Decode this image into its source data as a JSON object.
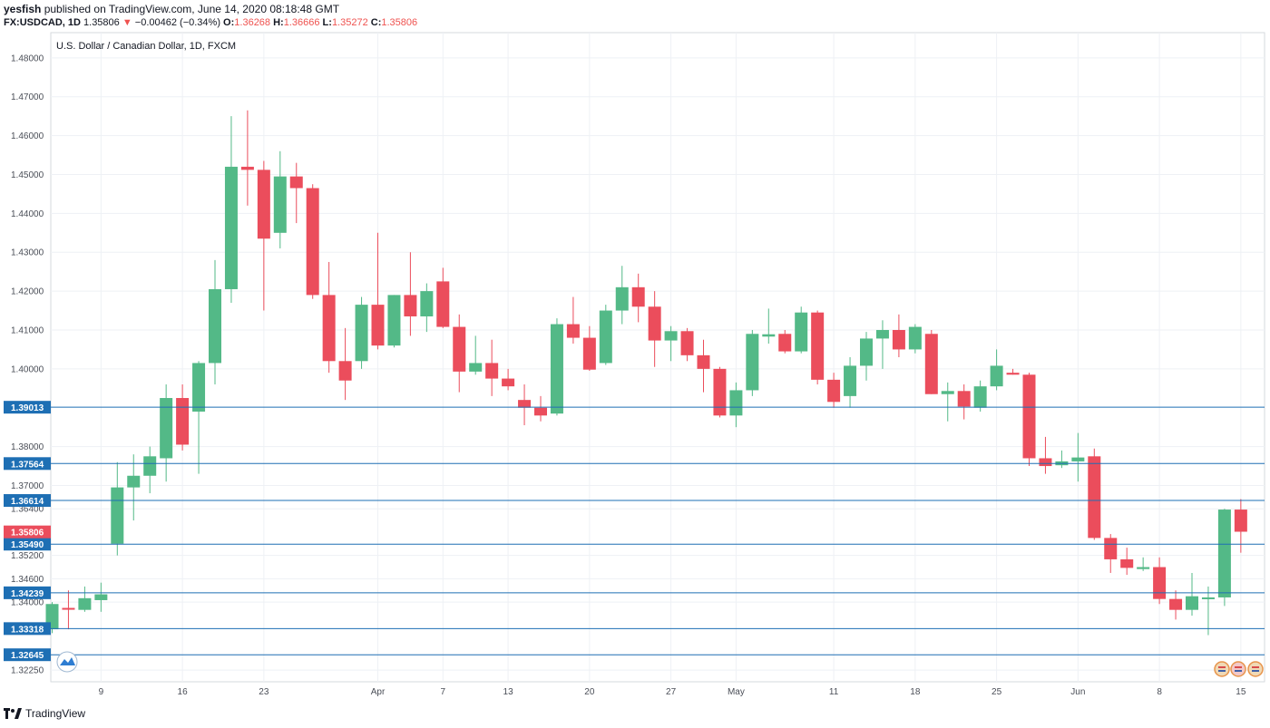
{
  "header": {
    "publisher": "yesfish",
    "published_text": "published on TradingView.com, June 14, 2020 08:18:48 GMT"
  },
  "ticker": {
    "symbol": "FX:USDCAD, 1D",
    "last": "1.35806",
    "change": "−0.00462 (−0.34%)",
    "open_label": "O:",
    "open": "1.36268",
    "high_label": "H:",
    "high": "1.36666",
    "low_label": "L:",
    "low": "1.35272",
    "close_label": "C:",
    "close": "1.35806"
  },
  "footer": {
    "brand": "TradingView"
  },
  "colors": {
    "up": "#53b987",
    "down": "#eb4d5c",
    "hline": "#1e6fb4",
    "grid": "#eef1f5",
    "axis_text": "#4a4e57",
    "label_bg_blue": "#1e6fb4",
    "label_bg_red": "#eb4d5c"
  },
  "chart_data": {
    "type": "candlestick",
    "title": "U.S. Dollar / Canadian Dollar, 1D, FXCM",
    "ylim": [
      1.3195,
      1.4865
    ],
    "y_ticks": [
      "1.48000",
      "1.47000",
      "1.46000",
      "1.45000",
      "1.44000",
      "1.43000",
      "1.42000",
      "1.41000",
      "1.40000",
      "1.38000",
      "1.37000",
      "1.36400",
      "1.35200",
      "1.34600",
      "1.34000",
      "1.32250"
    ],
    "x_ticks": [
      {
        "label": "9",
        "i": 3
      },
      {
        "label": "16",
        "i": 8
      },
      {
        "label": "23",
        "i": 13
      },
      {
        "label": "Apr",
        "i": 20
      },
      {
        "label": "7",
        "i": 24
      },
      {
        "label": "13",
        "i": 28
      },
      {
        "label": "20",
        "i": 33
      },
      {
        "label": "27",
        "i": 38
      },
      {
        "label": "May",
        "i": 42
      },
      {
        "label": "11",
        "i": 48
      },
      {
        "label": "18",
        "i": 53
      },
      {
        "label": "25",
        "i": 58
      },
      {
        "label": "Jun",
        "i": 63
      },
      {
        "label": "8",
        "i": 68
      },
      {
        "label": "15",
        "i": 73
      }
    ],
    "horizontal_lines": [
      1.39013,
      1.37564,
      1.36614,
      1.3549,
      1.34239,
      1.33318,
      1.32645
    ],
    "horizontal_line_labels": [
      "1.39013",
      "1.37564",
      "1.36614",
      "1.35490",
      "1.34239",
      "1.33318",
      "1.32645"
    ],
    "last_price": 1.35806,
    "last_price_label": "1.35806",
    "candles": [
      {
        "o": 1.333,
        "h": 1.34,
        "l": 1.332,
        "c": 1.3395
      },
      {
        "o": 1.3385,
        "h": 1.343,
        "l": 1.333,
        "c": 1.3383
      },
      {
        "o": 1.338,
        "h": 1.344,
        "l": 1.3375,
        "c": 1.341
      },
      {
        "o": 1.3405,
        "h": 1.345,
        "l": 1.3375,
        "c": 1.342
      },
      {
        "o": 1.355,
        "h": 1.376,
        "l": 1.352,
        "c": 1.3695
      },
      {
        "o": 1.3695,
        "h": 1.378,
        "l": 1.361,
        "c": 1.3725
      },
      {
        "o": 1.3725,
        "h": 1.38,
        "l": 1.368,
        "c": 1.3775
      },
      {
        "o": 1.377,
        "h": 1.396,
        "l": 1.371,
        "c": 1.3925
      },
      {
        "o": 1.3925,
        "h": 1.396,
        "l": 1.379,
        "c": 1.3805
      },
      {
        "o": 1.389,
        "h": 1.402,
        "l": 1.373,
        "c": 1.4015
      },
      {
        "o": 1.4015,
        "h": 1.428,
        "l": 1.396,
        "c": 1.4205
      },
      {
        "o": 1.4205,
        "h": 1.465,
        "l": 1.417,
        "c": 1.452
      },
      {
        "o": 1.452,
        "h": 1.4665,
        "l": 1.442,
        "c": 1.4512
      },
      {
        "o": 1.4512,
        "h": 1.4535,
        "l": 1.415,
        "c": 1.4335
      },
      {
        "o": 1.435,
        "h": 1.456,
        "l": 1.431,
        "c": 1.4495
      },
      {
        "o": 1.4495,
        "h": 1.453,
        "l": 1.4375,
        "c": 1.4465
      },
      {
        "o": 1.4465,
        "h": 1.4475,
        "l": 1.418,
        "c": 1.419
      },
      {
        "o": 1.419,
        "h": 1.4275,
        "l": 1.399,
        "c": 1.402
      },
      {
        "o": 1.402,
        "h": 1.4105,
        "l": 1.392,
        "c": 1.397
      },
      {
        "o": 1.402,
        "h": 1.4185,
        "l": 1.4,
        "c": 1.4165
      },
      {
        "o": 1.4165,
        "h": 1.435,
        "l": 1.405,
        "c": 1.406
      },
      {
        "o": 1.406,
        "h": 1.419,
        "l": 1.4055,
        "c": 1.419
      },
      {
        "o": 1.419,
        "h": 1.43,
        "l": 1.4085,
        "c": 1.4135
      },
      {
        "o": 1.4135,
        "h": 1.422,
        "l": 1.4095,
        "c": 1.42
      },
      {
        "o": 1.4225,
        "h": 1.426,
        "l": 1.4105,
        "c": 1.4108
      },
      {
        "o": 1.4108,
        "h": 1.414,
        "l": 1.394,
        "c": 1.3993
      },
      {
        "o": 1.3993,
        "h": 1.4085,
        "l": 1.3985,
        "c": 1.4015
      },
      {
        "o": 1.4015,
        "h": 1.4075,
        "l": 1.393,
        "c": 1.3975
      },
      {
        "o": 1.3975,
        "h": 1.4,
        "l": 1.3945,
        "c": 1.3955
      },
      {
        "o": 1.392,
        "h": 1.396,
        "l": 1.3855,
        "c": 1.39
      },
      {
        "o": 1.39,
        "h": 1.393,
        "l": 1.3865,
        "c": 1.388
      },
      {
        "o": 1.3885,
        "h": 1.413,
        "l": 1.388,
        "c": 1.4115
      },
      {
        "o": 1.4115,
        "h": 1.4185,
        "l": 1.4065,
        "c": 1.408
      },
      {
        "o": 1.408,
        "h": 1.411,
        "l": 1.3995,
        "c": 1.3998
      },
      {
        "o": 1.4015,
        "h": 1.4165,
        "l": 1.401,
        "c": 1.415
      },
      {
        "o": 1.415,
        "h": 1.4265,
        "l": 1.4115,
        "c": 1.421
      },
      {
        "o": 1.421,
        "h": 1.4245,
        "l": 1.412,
        "c": 1.416
      },
      {
        "o": 1.416,
        "h": 1.42,
        "l": 1.4005,
        "c": 1.4073
      },
      {
        "o": 1.4073,
        "h": 1.411,
        "l": 1.402,
        "c": 1.4097
      },
      {
        "o": 1.4097,
        "h": 1.4105,
        "l": 1.402,
        "c": 1.4035
      },
      {
        "o": 1.4035,
        "h": 1.4075,
        "l": 1.394,
        "c": 1.4
      },
      {
        "o": 1.4,
        "h": 1.4005,
        "l": 1.3875,
        "c": 1.388
      },
      {
        "o": 1.388,
        "h": 1.3965,
        "l": 1.385,
        "c": 1.3945
      },
      {
        "o": 1.3945,
        "h": 1.41,
        "l": 1.393,
        "c": 1.409
      },
      {
        "o": 1.4083,
        "h": 1.4155,
        "l": 1.4065,
        "c": 1.4089
      },
      {
        "o": 1.409,
        "h": 1.41,
        "l": 1.404,
        "c": 1.4045
      },
      {
        "o": 1.4045,
        "h": 1.416,
        "l": 1.404,
        "c": 1.4145
      },
      {
        "o": 1.4145,
        "h": 1.415,
        "l": 1.396,
        "c": 1.3972
      },
      {
        "o": 1.3972,
        "h": 1.399,
        "l": 1.39,
        "c": 1.3915
      },
      {
        "o": 1.393,
        "h": 1.403,
        "l": 1.39,
        "c": 1.4008
      },
      {
        "o": 1.4008,
        "h": 1.4095,
        "l": 1.397,
        "c": 1.4078
      },
      {
        "o": 1.4078,
        "h": 1.4125,
        "l": 1.4,
        "c": 1.41
      },
      {
        "o": 1.41,
        "h": 1.414,
        "l": 1.403,
        "c": 1.405
      },
      {
        "o": 1.405,
        "h": 1.4115,
        "l": 1.404,
        "c": 1.4108
      },
      {
        "o": 1.409,
        "h": 1.41,
        "l": 1.3935,
        "c": 1.3935
      },
      {
        "o": 1.3935,
        "h": 1.3965,
        "l": 1.3865,
        "c": 1.3943
      },
      {
        "o": 1.3943,
        "h": 1.396,
        "l": 1.387,
        "c": 1.3903
      },
      {
        "o": 1.39,
        "h": 1.397,
        "l": 1.389,
        "c": 1.3955
      },
      {
        "o": 1.3955,
        "h": 1.405,
        "l": 1.3945,
        "c": 1.4008
      },
      {
        "o": 1.399,
        "h": 1.4,
        "l": 1.3985,
        "c": 1.3985
      },
      {
        "o": 1.3985,
        "h": 1.399,
        "l": 1.375,
        "c": 1.377
      },
      {
        "o": 1.377,
        "h": 1.3825,
        "l": 1.373,
        "c": 1.375
      },
      {
        "o": 1.3752,
        "h": 1.379,
        "l": 1.3745,
        "c": 1.3762
      },
      {
        "o": 1.3762,
        "h": 1.3835,
        "l": 1.371,
        "c": 1.3772
      },
      {
        "o": 1.3775,
        "h": 1.3795,
        "l": 1.356,
        "c": 1.3565
      },
      {
        "o": 1.3565,
        "h": 1.3575,
        "l": 1.3475,
        "c": 1.351
      },
      {
        "o": 1.351,
        "h": 1.354,
        "l": 1.347,
        "c": 1.3488
      },
      {
        "o": 1.3485,
        "h": 1.3515,
        "l": 1.348,
        "c": 1.349
      },
      {
        "o": 1.349,
        "h": 1.3515,
        "l": 1.3395,
        "c": 1.3408
      },
      {
        "o": 1.3408,
        "h": 1.343,
        "l": 1.3355,
        "c": 1.338
      },
      {
        "o": 1.338,
        "h": 1.3475,
        "l": 1.3365,
        "c": 1.3415
      },
      {
        "o": 1.3408,
        "h": 1.344,
        "l": 1.3315,
        "c": 1.3412
      },
      {
        "o": 1.3412,
        "h": 1.364,
        "l": 1.339,
        "c": 1.3638
      },
      {
        "o": 1.3638,
        "h": 1.3665,
        "l": 1.3527,
        "c": 1.3581
      }
    ]
  }
}
